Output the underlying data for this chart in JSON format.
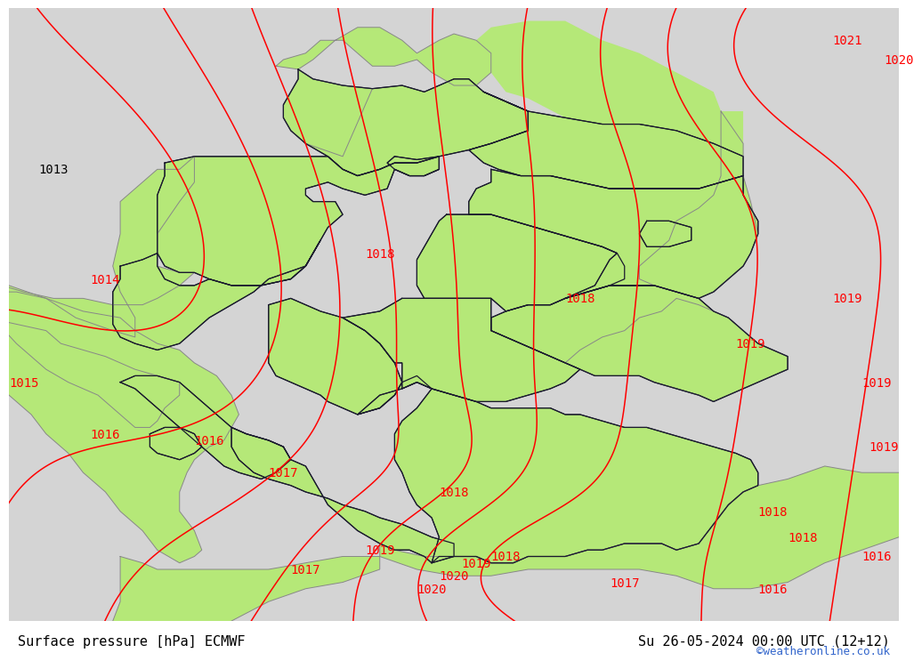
{
  "title_left": "Surface pressure [hPa] ECMWF",
  "title_right": "Su 26-05-2024 00:00 UTC (12+12)",
  "watermark": "©weatheronline.co.uk",
  "background_color": "#ffffff",
  "land_color_green": "#b5e878",
  "land_color_gray": "#d4d4d4",
  "contour_color": "#ff0000",
  "border_color_dark": "#1a1a2e",
  "border_color_gray": "#888888",
  "font_size_labels": 10,
  "font_size_bottom": 11,
  "font_size_watermark": 9,
  "map_extent": [
    4.5,
    16.5,
    46.5,
    56.0
  ],
  "pressure_contour_levels": [
    1013,
    1014,
    1015,
    1016,
    1017,
    1018,
    1019,
    1020,
    1021
  ],
  "pressure_labels": [
    {
      "value": "1013",
      "lon": 5.1,
      "lat": 53.5,
      "color": "black"
    },
    {
      "value": "1014",
      "lon": 5.8,
      "lat": 51.8,
      "color": "red"
    },
    {
      "value": "1015",
      "lon": 4.7,
      "lat": 50.2,
      "color": "red"
    },
    {
      "value": "1016",
      "lon": 5.8,
      "lat": 49.4,
      "color": "red"
    },
    {
      "value": "1016",
      "lon": 7.2,
      "lat": 49.3,
      "color": "red"
    },
    {
      "value": "1017",
      "lon": 8.2,
      "lat": 48.8,
      "color": "red"
    },
    {
      "value": "1017",
      "lon": 8.5,
      "lat": 47.3,
      "color": "red"
    },
    {
      "value": "1017",
      "lon": 12.8,
      "lat": 47.1,
      "color": "red"
    },
    {
      "value": "1018",
      "lon": 9.5,
      "lat": 52.2,
      "color": "red"
    },
    {
      "value": "1018",
      "lon": 12.2,
      "lat": 51.5,
      "color": "red"
    },
    {
      "value": "1018",
      "lon": 10.5,
      "lat": 48.5,
      "color": "red"
    },
    {
      "value": "1018",
      "lon": 11.2,
      "lat": 47.5,
      "color": "red"
    },
    {
      "value": "1018",
      "lon": 14.8,
      "lat": 48.2,
      "color": "red"
    },
    {
      "value": "1019",
      "lon": 9.5,
      "lat": 47.6,
      "color": "red"
    },
    {
      "value": "1019",
      "lon": 10.8,
      "lat": 47.4,
      "color": "red"
    },
    {
      "value": "1019",
      "lon": 14.5,
      "lat": 50.8,
      "color": "red"
    },
    {
      "value": "1019",
      "lon": 15.8,
      "lat": 51.5,
      "color": "red"
    },
    {
      "value": "1019",
      "lon": 16.2,
      "lat": 50.2,
      "color": "red"
    },
    {
      "value": "1019",
      "lon": 16.3,
      "lat": 49.2,
      "color": "red"
    },
    {
      "value": "1020",
      "lon": 10.5,
      "lat": 47.2,
      "color": "red"
    },
    {
      "value": "1020",
      "lon": 10.2,
      "lat": 47.0,
      "color": "red"
    },
    {
      "value": "1021",
      "lon": 15.8,
      "lat": 55.5,
      "color": "red"
    },
    {
      "value": "1020",
      "lon": 16.5,
      "lat": 55.2,
      "color": "red"
    },
    {
      "value": "1016",
      "lon": 16.2,
      "lat": 47.5,
      "color": "red"
    },
    {
      "value": "1018",
      "lon": 15.2,
      "lat": 47.8,
      "color": "red"
    },
    {
      "value": "1016",
      "lon": 14.8,
      "lat": 47.0,
      "color": "red"
    }
  ]
}
